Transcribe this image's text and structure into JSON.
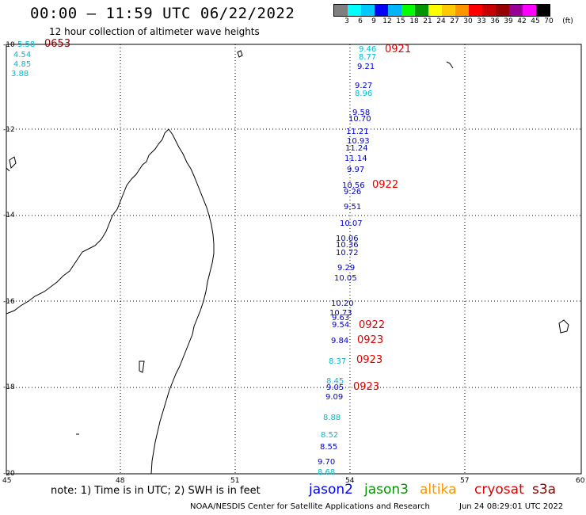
{
  "header": {
    "title": "00:00 — 11:59 UTC 06/22/2022",
    "subtitle": "12 hour collection of altimeter wave heights"
  },
  "legend": {
    "unit": "(ft)",
    "colors": [
      "#7f7f7f",
      "#00ffff",
      "#00c8ff",
      "#0000ff",
      "#00b4ff",
      "#00ff00",
      "#009600",
      "#ffff00",
      "#ffc800",
      "#ff9600",
      "#ff0000",
      "#c80000",
      "#960000",
      "#960096",
      "#ff00ff",
      "#000000"
    ],
    "labels": [
      "3",
      "6",
      "9",
      "12",
      "15",
      "18",
      "21",
      "24",
      "27",
      "30",
      "33",
      "36",
      "39",
      "42",
      "45",
      "70"
    ]
  },
  "axes": {
    "x_ticks": [
      "45",
      "48",
      "51",
      "54",
      "57",
      "60"
    ],
    "y_ticks": [
      "-10",
      "-12",
      "-14",
      "-16",
      "-18",
      "-20"
    ]
  },
  "observations": [
    {
      "text": "5.58",
      "color": "#00bcd4"
    },
    {
      "text": "4.54",
      "color": "#00bcd4"
    },
    {
      "text": "4.85",
      "color": "#00bcd4"
    },
    {
      "text": "3.88",
      "color": "#00bcd4"
    },
    {
      "text": "0653",
      "color": "#8b0000"
    },
    {
      "text": "9.46",
      "color": "#00bcd4"
    },
    {
      "text": "8.77",
      "color": "#00bcd4"
    },
    {
      "text": "9.21",
      "color": "#0000cc"
    },
    {
      "text": "0921",
      "color": "#e00000"
    },
    {
      "text": "9.27",
      "color": "#0000cc"
    },
    {
      "text": "8.96",
      "color": "#00bcd4"
    },
    {
      "text": "9.58",
      "color": "#0000cc"
    },
    {
      "text": "10.70",
      "color": "#0000cc"
    },
    {
      "text": "11.21",
      "color": "#0000cc"
    },
    {
      "text": "10.93",
      "color": "#0000cc"
    },
    {
      "text": "11.24",
      "color": "#0000cc"
    },
    {
      "text": "11.14",
      "color": "#0000cc"
    },
    {
      "text": "9.97",
      "color": "#0000cc"
    },
    {
      "text": "10.56",
      "color": "#0000cc"
    },
    {
      "text": "9.26",
      "color": "#0000cc"
    },
    {
      "text": "0922",
      "color": "#e00000"
    },
    {
      "text": "9.51",
      "color": "#0000cc"
    },
    {
      "text": "10.07",
      "color": "#0000cc"
    },
    {
      "text": "10.06",
      "color": "#0000cc"
    },
    {
      "text": "10.36",
      "color": "#0000cc"
    },
    {
      "text": "10.72",
      "color": "#0000cc"
    },
    {
      "text": "9.29",
      "color": "#0000cc"
    },
    {
      "text": "10.05",
      "color": "#0000cc"
    },
    {
      "text": "10.20",
      "color": "#0000cc"
    },
    {
      "text": "10.73",
      "color": "#0000cc"
    },
    {
      "text": "9.63",
      "color": "#0000cc"
    },
    {
      "text": "9.54",
      "color": "#0000cc"
    },
    {
      "text": "0922",
      "color": "#e00000"
    },
    {
      "text": "9.84",
      "color": "#0000cc"
    },
    {
      "text": "0923",
      "color": "#e00000"
    },
    {
      "text": "8.37",
      "color": "#00bcd4"
    },
    {
      "text": "0923",
      "color": "#e00000"
    },
    {
      "text": "8.45",
      "color": "#00bcd4"
    },
    {
      "text": "9.05",
      "color": "#0000cc"
    },
    {
      "text": "9.09",
      "color": "#0000cc"
    },
    {
      "text": "0923",
      "color": "#e00000"
    },
    {
      "text": "8.88",
      "color": "#00bcd4"
    },
    {
      "text": "8.52",
      "color": "#00bcd4"
    },
    {
      "text": "8.55",
      "color": "#0000cc"
    },
    {
      "text": "9.70",
      "color": "#0000cc"
    },
    {
      "text": "8.68",
      "color": "#00bcd4"
    }
  ],
  "footer": {
    "note": "note: 1) Time is in UTC; 2) SWH is in feet",
    "satellites": [
      {
        "name": "jason2",
        "color": "#0000ff"
      },
      {
        "name": "jason3",
        "color": "#009600"
      },
      {
        "name": "altika",
        "color": "#ff9600"
      },
      {
        "name": "cryosat",
        "color": "#e00000"
      },
      {
        "name": "s3a",
        "color": "#8b0000"
      }
    ],
    "credit": "NOAA/NESDIS Center for Satellite Applications and Research",
    "timestamp": "Jun 24 08:29:01 UTC 2022"
  }
}
